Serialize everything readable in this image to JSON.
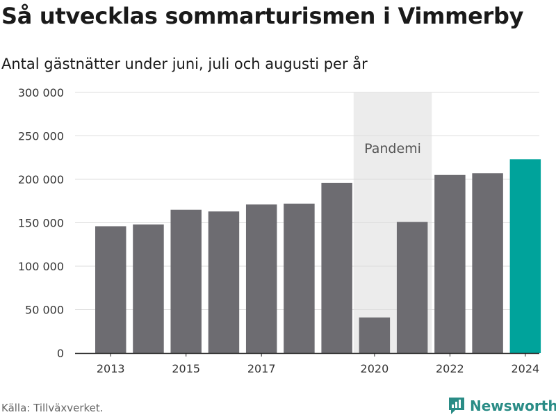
{
  "header": {
    "title": "Så utvecklas sommarturismen i Vimmerby",
    "subtitle": "Antal gästnätter under juni, juli och augusti per år"
  },
  "footer": {
    "source": "Källa: Tillväxverket.",
    "brand": "Newsworthy",
    "brand_icon": "newsworthy-logo-icon"
  },
  "colors": {
    "bar": "#6d6c71",
    "highlight": "#00a39b",
    "band": "#ececec",
    "grid": "#dddddd",
    "brand": "#2a8c86"
  },
  "chart_data": {
    "type": "bar",
    "categories": [
      "2013",
      "2014",
      "2015",
      "2016",
      "2017",
      "2018",
      "2019",
      "2020",
      "2021",
      "2022",
      "2023",
      "2024"
    ],
    "values": [
      146000,
      148000,
      165000,
      163000,
      171000,
      172000,
      196000,
      41000,
      151000,
      205000,
      207000,
      223000
    ],
    "highlight_category": "2024",
    "x_tick_labels": [
      "2013",
      "2015",
      "2017",
      "2020",
      "2022",
      "2024"
    ],
    "ylim": [
      0,
      300000
    ],
    "y_ticks": [
      0,
      50000,
      100000,
      150000,
      200000,
      250000,
      300000
    ],
    "y_tick_labels": [
      "0",
      "50 000",
      "100 000",
      "150 000",
      "200 000",
      "250 000",
      "300 000"
    ],
    "annotation": {
      "label": "Pandemi",
      "from_category": "2020",
      "to_category": "2021"
    },
    "grid": true,
    "legend": "none",
    "xlabel": "",
    "ylabel": ""
  }
}
